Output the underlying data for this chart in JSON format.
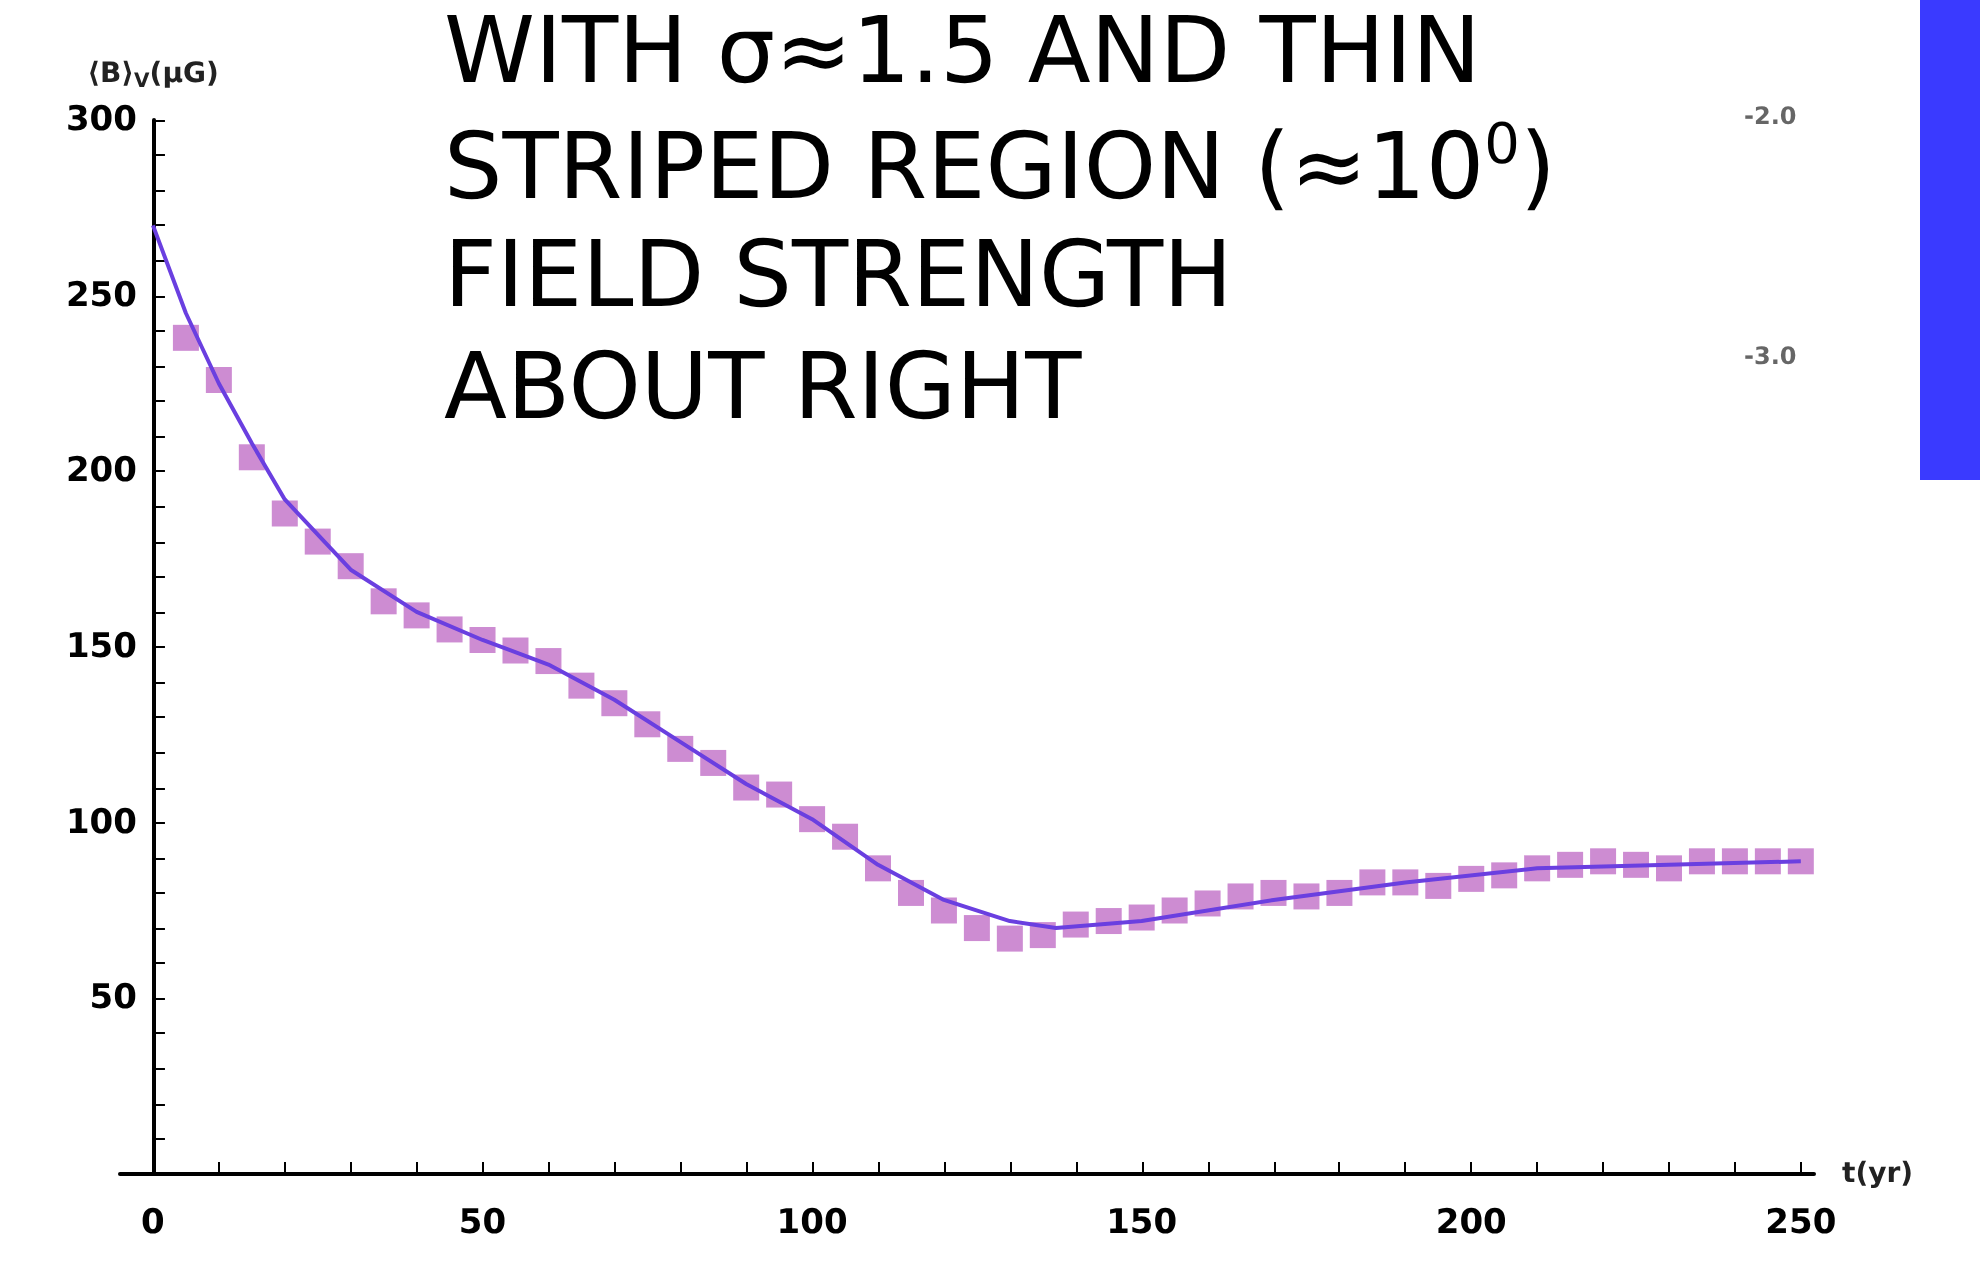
{
  "chart_data": {
    "type": "scatter",
    "xlabel": "t(yr)",
    "ylabel": "⟨B⟩$_{V}$(μG)",
    "annotations": [
      "WITH σ≈1.5 AND THIN",
      "STRIPED REGION (≈10$^{0}$)",
      "FIELD STRENGTH",
      "ABOUT RIGHT",
      "-2.0",
      "-3.0"
    ],
    "xlim": [
      -5,
      252
    ],
    "xticks": [
      0,
      {
        "value": 10,
        "label": null
      },
      {
        "value": 20,
        "label": null
      },
      {
        "value": 30,
        "label": null
      },
      {
        "value": 40,
        "label": null
      },
      50,
      {
        "value": 60,
        "label": null
      },
      {
        "value": 70,
        "label": null
      },
      {
        "value": 80,
        "label": null
      },
      {
        "value": 90,
        "label": null
      },
      100,
      {
        "value": 110,
        "label": null
      },
      {
        "value": 120,
        "label": null
      },
      {
        "value": 130,
        "label": null
      },
      {
        "value": 140,
        "label": null
      },
      150,
      {
        "value": 160,
        "label": null
      },
      {
        "value": 170,
        "label": null
      },
      {
        "value": 180,
        "label": null
      },
      {
        "value": 190,
        "label": null
      },
      200,
      {
        "value": 210,
        "label": null
      },
      {
        "value": 220,
        "label": null
      },
      {
        "value": 230,
        "label": null
      },
      {
        "value": 240,
        "label": null
      },
      250
    ],
    "ylim": [
      0,
      300
    ],
    "yticks": [
      {
        "value": 10,
        "label": null
      },
      {
        "value": 20,
        "label": null
      },
      {
        "value": 30,
        "label": null
      },
      {
        "value": 40,
        "label": null
      },
      50,
      {
        "value": 60,
        "label": null
      },
      {
        "value": 70,
        "label": null
      },
      {
        "value": 80,
        "label": null
      },
      {
        "value": 90,
        "label": null
      },
      100,
      {
        "value": 110,
        "label": null
      },
      {
        "value": 120,
        "label": null
      },
      {
        "value": 130,
        "label": null
      },
      {
        "value": 140,
        "label": null
      },
      150,
      {
        "value": 160,
        "label": null
      },
      {
        "value": 170,
        "label": null
      },
      {
        "value": 180,
        "label": null
      },
      {
        "value": 190,
        "label": null
      },
      200,
      {
        "value": 210,
        "label": null
      },
      {
        "value": 220,
        "label": null
      },
      {
        "value": 230,
        "label": null
      },
      {
        "value": 240,
        "label": null
      },
      250,
      {
        "value": 260,
        "label": null
      },
      {
        "value": 270,
        "label": null
      },
      {
        "value": 280,
        "label": null
      },
      {
        "value": 290,
        "label": null
      },
      300
    ],
    "grid": false,
    "marker": "square",
    "series": [
      {
        "type": "line",
        "color": "#6a3fe0",
        "marker": "none",
        "x": [
          0,
          5,
          10,
          15,
          20,
          30,
          40,
          50,
          60,
          70,
          80,
          90,
          100,
          110,
          120,
          130,
          137,
          150,
          170,
          190,
          210,
          230,
          250
        ],
        "values": [
          270,
          245,
          225,
          208,
          192,
          172,
          160,
          152,
          145,
          135,
          123,
          111,
          101,
          88,
          78,
          72,
          70,
          72,
          78,
          83,
          87,
          88,
          89
        ]
      },
      {
        "type": "scatter",
        "color": "#c06fc7",
        "x": [
          5,
          10,
          15,
          20,
          25,
          30,
          35,
          40,
          45,
          50,
          55,
          60,
          65,
          70,
          75,
          80,
          85,
          90,
          95,
          100,
          105,
          110,
          115,
          120,
          125,
          130,
          135,
          140,
          145,
          150,
          155,
          160,
          165,
          170,
          175,
          180,
          185,
          190,
          195,
          200,
          205,
          210,
          215,
          220,
          225,
          230,
          235,
          240,
          245,
          250
        ],
        "values": [
          238,
          226,
          204,
          188,
          180,
          173,
          163,
          159,
          155,
          152,
          149,
          146,
          139,
          134,
          128,
          121,
          117,
          110,
          108,
          101,
          96,
          87,
          80,
          75,
          70,
          67,
          68,
          71,
          72,
          73,
          75,
          77,
          79,
          80,
          79,
          80,
          83,
          83,
          82,
          84,
          85,
          87,
          88,
          89,
          88,
          87,
          89,
          89,
          89,
          89
        ]
      }
    ]
  }
}
